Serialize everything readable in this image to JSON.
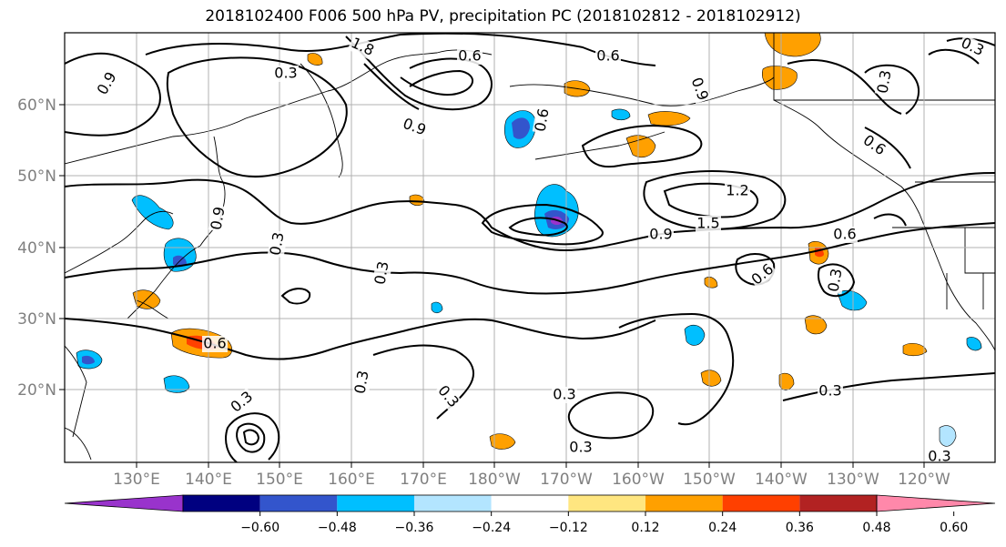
{
  "title": "2018102400 F006 500 hPa PV, precipitation PC (2018102812 - 2018102912)",
  "map": {
    "lat_labels": [
      "60°N",
      "50°N",
      "40°N",
      "30°N",
      "20°N"
    ],
    "lon_labels": [
      "130°E",
      "140°E",
      "150°E",
      "160°E",
      "170°E",
      "180°W",
      "170°W",
      "160°W",
      "150°W",
      "140°W",
      "130°W",
      "120°W"
    ],
    "contour_labels": [
      "0.9",
      "1.8",
      "0.3",
      "0.6",
      "0.6",
      "0.3",
      "0.6",
      "0.9",
      "0.9",
      "0.9",
      "0.3",
      "0.6",
      "1.2",
      "1.5",
      "0.9",
      "0.6",
      "0.3",
      "0.3",
      "0.6",
      "0.3",
      "0.3",
      "0.3",
      "0.3",
      "0.3",
      "0.3",
      "0.3",
      "0.3",
      "0.6"
    ]
  },
  "colorbar": {
    "tick_labels": [
      "−0.60",
      "−0.48",
      "−0.36",
      "−0.24",
      "−0.12",
      "0.12",
      "0.24",
      "0.36",
      "0.48",
      "0.60"
    ],
    "colors": [
      "#9933cc",
      "#000080",
      "#3355cc",
      "#00bfff",
      "#b3e5ff",
      "#ffffff",
      "#ffe680",
      "#ffa000",
      "#ff4000",
      "#b22222",
      "#ff88aa"
    ]
  }
}
